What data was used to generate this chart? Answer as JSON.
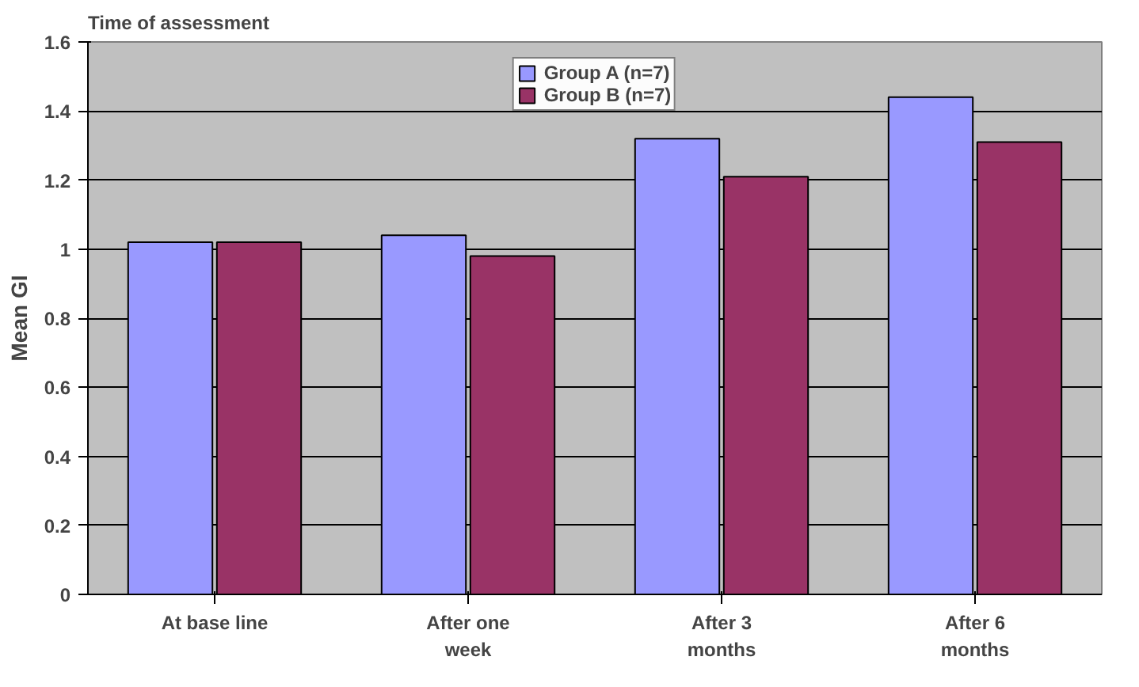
{
  "chart_data": {
    "type": "bar",
    "title": "Time of assessment",
    "ylabel": "Mean GI",
    "categories": [
      "At base line",
      "After one\nweek",
      "After 3\nmonths",
      "After 6\nmonths"
    ],
    "series": [
      {
        "name": "Group A (n=7)",
        "color": "#9999ff",
        "values": [
          1.02,
          1.04,
          1.32,
          1.44
        ]
      },
      {
        "name": "Group B (n=7)",
        "color": "#993366",
        "values": [
          1.02,
          0.98,
          1.21,
          1.31
        ]
      }
    ],
    "ylim": [
      0,
      1.6
    ],
    "yticks": [
      0,
      0.2,
      0.4,
      0.6,
      0.8,
      1,
      1.2,
      1.4,
      1.6
    ],
    "grid": "y",
    "legend": "top"
  }
}
